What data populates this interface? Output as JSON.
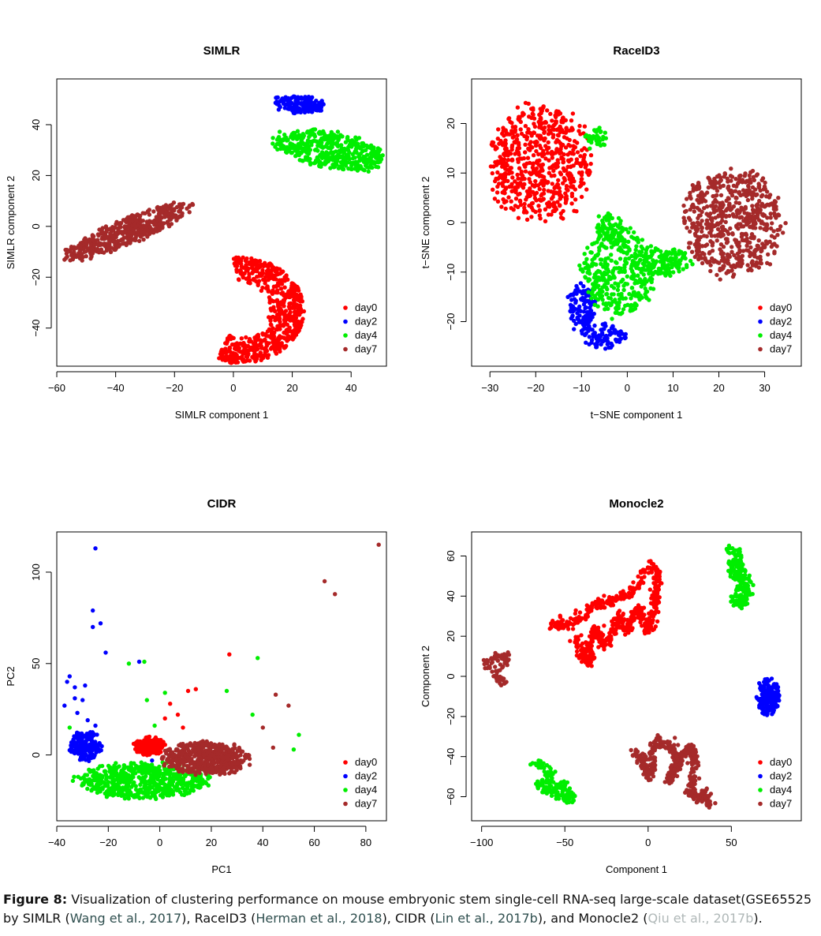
{
  "chart_data": [
    {
      "type": "scatter",
      "title": "SIMLR",
      "xlabel": "SIMLR component 1",
      "ylabel": "SIMLR component 2",
      "xlim": [
        -60,
        52
      ],
      "ylim": [
        -55,
        58
      ],
      "xticks": [
        -60,
        -40,
        -20,
        0,
        20,
        40
      ],
      "yticks": [
        -40,
        -20,
        0,
        20,
        40
      ],
      "legend": "bottom-right",
      "series": [
        {
          "name": "day0",
          "color": "#ff0000",
          "clusters": [
            {
              "kind": "arc",
              "cx": 2,
              "cy": -33,
              "rin": 10,
              "rout": 22,
              "a0": -110,
              "a1": 95,
              "n": 650
            }
          ]
        },
        {
          "name": "day2",
          "color": "#0000ff",
          "clusters": [
            {
              "kind": "ellipse",
              "cx": 22,
              "cy": 48,
              "rx": 9,
              "ry": 3.5,
              "rot": -5,
              "n": 150
            }
          ]
        },
        {
          "name": "day4",
          "color": "#00ee00",
          "clusters": [
            {
              "kind": "ellipse",
              "cx": 33,
              "cy": 30,
              "rx": 20,
              "ry": 7,
              "rot": -12,
              "n": 480
            }
          ]
        },
        {
          "name": "day7",
          "color": "#a52a2a",
          "clusters": [
            {
              "kind": "ellipse",
              "cx": -36,
              "cy": -2,
              "rx": 24,
              "ry": 5,
              "rot": 26,
              "n": 500
            }
          ]
        }
      ]
    },
    {
      "type": "scatter",
      "title": "RaceID3",
      "xlabel": "t−SNE component 1",
      "ylabel": "t−SNE component 2",
      "xlim": [
        -34,
        38
      ],
      "ylim": [
        -29,
        29
      ],
      "xticks": [
        -30,
        -20,
        -10,
        0,
        10,
        20,
        30
      ],
      "yticks": [
        -20,
        -10,
        0,
        10,
        20
      ],
      "legend": "bottom-right",
      "series": [
        {
          "name": "day0",
          "color": "#ff0000",
          "clusters": [
            {
              "kind": "ellipse",
              "cx": -19,
              "cy": 12,
              "rx": 11,
              "ry": 12,
              "rot": 0,
              "n": 620
            }
          ]
        },
        {
          "name": "day2",
          "color": "#0000ff",
          "clusters": [
            {
              "kind": "ellipse",
              "cx": -10,
              "cy": -17,
              "rx": 3,
              "ry": 5,
              "rot": 0,
              "n": 110
            },
            {
              "kind": "ellipse",
              "cx": -5,
              "cy": -23,
              "rx": 5,
              "ry": 2.5,
              "rot": 0,
              "n": 90
            }
          ]
        },
        {
          "name": "day4",
          "color": "#00ee00",
          "clusters": [
            {
              "kind": "ellipse",
              "cx": -2,
              "cy": -10,
              "rx": 8,
              "ry": 9,
              "rot": 0,
              "n": 380
            },
            {
              "kind": "ellipse",
              "cx": 8,
              "cy": -8,
              "rx": 6,
              "ry": 3,
              "rot": 0,
              "n": 140
            },
            {
              "kind": "ellipse",
              "cx": -4,
              "cy": -1,
              "rx": 3,
              "ry": 3,
              "rot": 0,
              "n": 60
            },
            {
              "kind": "ellipse",
              "cx": -7,
              "cy": 17,
              "rx": 2.5,
              "ry": 2.5,
              "rot": 0,
              "n": 35
            }
          ]
        },
        {
          "name": "day7",
          "color": "#a52a2a",
          "clusters": [
            {
              "kind": "ellipse",
              "cx": 23,
              "cy": 0,
              "rx": 11,
              "ry": 11,
              "rot": 0,
              "n": 620
            }
          ]
        }
      ]
    },
    {
      "type": "scatter",
      "title": "CIDR",
      "xlabel": "PC1",
      "ylabel": "PC2",
      "xlim": [
        -40,
        88
      ],
      "ylim": [
        -36,
        122
      ],
      "xticks": [
        -40,
        -20,
        0,
        20,
        40,
        60,
        80
      ],
      "yticks": [
        0,
        50,
        100
      ],
      "legend": "bottom-right",
      "series": [
        {
          "name": "day0",
          "color": "#ff0000",
          "clusters": [
            {
              "kind": "ellipse",
              "cx": -4,
              "cy": 5,
              "rx": 6,
              "ry": 5,
              "rot": 0,
              "n": 170
            },
            {
              "kind": "scatter",
              "pts": [
                [
                  4,
                  28
                ],
                [
                  7,
                  22
                ],
                [
                  11,
                  35
                ],
                [
                  14,
                  36
                ],
                [
                  27,
                  55
                ],
                [
                  9,
                  15
                ],
                [
                  2,
                  20
                ]
              ]
            }
          ]
        },
        {
          "name": "day2",
          "color": "#0000ff",
          "clusters": [
            {
              "kind": "ellipse",
              "cx": -29,
              "cy": 5,
              "rx": 6,
              "ry": 8,
              "rot": 0,
              "n": 170
            },
            {
              "kind": "scatter",
              "pts": [
                [
                  -25,
                  113
                ],
                [
                  -26,
                  79
                ],
                [
                  -26,
                  70
                ],
                [
                  -23,
                  72
                ],
                [
                  -21,
                  56
                ],
                [
                  -35,
                  43
                ],
                [
                  -36,
                  40
                ],
                [
                  -33,
                  37
                ],
                [
                  -29,
                  38
                ],
                [
                  -30,
                  30
                ],
                [
                  -33,
                  31
                ],
                [
                  -37,
                  27
                ],
                [
                  -32,
                  23
                ],
                [
                  -28,
                  19
                ],
                [
                  -25,
                  16
                ],
                [
                  -8,
                  51
                ],
                [
                  -3,
                  -3
                ]
              ]
            }
          ]
        },
        {
          "name": "day4",
          "color": "#00ee00",
          "clusters": [
            {
              "kind": "ellipse",
              "cx": -6,
              "cy": -14,
              "rx": 26,
              "ry": 10,
              "rot": 0,
              "n": 650
            },
            {
              "kind": "scatter",
              "pts": [
                [
                  -12,
                  50
                ],
                [
                  -6,
                  51
                ],
                [
                  38,
                  53
                ],
                [
                  54,
                  11
                ],
                [
                  52,
                  3
                ],
                [
                  26,
                  35
                ],
                [
                  -5,
                  30
                ],
                [
                  2,
                  34
                ],
                [
                  36,
                  22
                ],
                [
                  -2,
                  16
                ],
                [
                  -35,
                  15
                ]
              ]
            }
          ]
        },
        {
          "name": "day7",
          "color": "#a52a2a",
          "clusters": [
            {
              "kind": "ellipse",
              "cx": 18,
              "cy": -2,
              "rx": 17,
              "ry": 9,
              "rot": 0,
              "n": 520
            },
            {
              "kind": "scatter",
              "pts": [
                [
                  85,
                  115
                ],
                [
                  64,
                  95
                ],
                [
                  68,
                  88
                ],
                [
                  45,
                  33
                ],
                [
                  50,
                  27
                ],
                [
                  40,
                  15
                ],
                [
                  44,
                  4
                ]
              ]
            }
          ]
        }
      ]
    },
    {
      "type": "scatter",
      "title": "Monocle2",
      "xlabel": "Component 1",
      "ylabel": "Component 2",
      "xlim": [
        -106,
        92
      ],
      "ylim": [
        -72,
        72
      ],
      "xticks": [
        -100,
        -50,
        0,
        50
      ],
      "yticks": [
        -60,
        -40,
        -20,
        0,
        20,
        40,
        60
      ],
      "legend": "bottom-right",
      "series": [
        {
          "name": "day0",
          "color": "#ff0000",
          "clusters": [
            {
              "kind": "path",
              "width": 2.5,
              "n": 650,
              "pts": [
                [
                  -58,
                  25
                ],
                [
                  -48,
                  27
                ],
                [
                  -38,
                  30
                ],
                [
                  -32,
                  35
                ],
                [
                  -26,
                  38
                ],
                [
                  -20,
                  38
                ],
                [
                  -14,
                  40
                ],
                [
                  -10,
                  42
                ],
                [
                  -5,
                  45
                ],
                [
                  -3,
                  52
                ],
                [
                  2,
                  55
                ],
                [
                  6,
                  52
                ],
                [
                  5,
                  40
                ],
                [
                  3,
                  30
                ],
                [
                  0,
                  22
                ],
                [
                  -3,
                  28
                ],
                [
                  -6,
                  35
                ],
                [
                  -9,
                  28
                ],
                [
                  -13,
                  22
                ],
                [
                  -17,
                  30
                ],
                [
                  -22,
                  20
                ],
                [
                  -26,
                  15
                ],
                [
                  -31,
                  24
                ],
                [
                  -36,
                  16
                ],
                [
                  -35,
                  6
                ],
                [
                  -39,
                  10
                ],
                [
                  -43,
                  19
                ]
              ]
            }
          ]
        },
        {
          "name": "day2",
          "color": "#0000ff",
          "clusters": [
            {
              "kind": "ellipse",
              "cx": 72,
              "cy": -10,
              "rx": 7,
              "ry": 9,
              "rot": 0,
              "n": 170
            }
          ]
        },
        {
          "name": "day4",
          "color": "#00ee00",
          "clusters": [
            {
              "kind": "path",
              "width": 2.5,
              "n": 220,
              "pts": [
                [
                  48,
                  65
                ],
                [
                  52,
                  60
                ],
                [
                  49,
                  55
                ],
                [
                  52,
                  50
                ],
                [
                  56,
                  48
                ],
                [
                  54,
                  42
                ],
                [
                  52,
                  37
                ],
                [
                  57,
                  36
                ],
                [
                  60,
                  42
                ],
                [
                  58,
                  50
                ],
                [
                  55,
                  55
                ],
                [
                  55,
                  62
                ]
              ]
            },
            {
              "kind": "path",
              "width": 2.5,
              "n": 170,
              "pts": [
                [
                  -68,
                  -44
                ],
                [
                  -62,
                  -45
                ],
                [
                  -58,
                  -48
                ],
                [
                  -62,
                  -52
                ],
                [
                  -66,
                  -55
                ],
                [
                  -58,
                  -57
                ],
                [
                  -52,
                  -54
                ],
                [
                  -48,
                  -58
                ],
                [
                  -45,
                  -60
                ],
                [
                  -50,
                  -61
                ],
                [
                  -55,
                  -60
                ]
              ]
            }
          ]
        },
        {
          "name": "day7",
          "color": "#a52a2a",
          "clusters": [
            {
              "kind": "path",
              "width": 2.2,
              "n": 80,
              "pts": [
                [
                  -97,
                  5
                ],
                [
                  -93,
                  10
                ],
                [
                  -88,
                  10
                ],
                [
                  -84,
                  9
                ],
                [
                  -88,
                  5
                ],
                [
                  -92,
                  2
                ],
                [
                  -90,
                  -1
                ],
                [
                  -86,
                  -3
                ]
              ]
            },
            {
              "kind": "path",
              "width": 2.5,
              "n": 480,
              "pts": [
                [
                  -9,
                  -38
                ],
                [
                  -4,
                  -40
                ],
                [
                  -2,
                  -45
                ],
                [
                  0,
                  -50
                ],
                [
                  3,
                  -45
                ],
                [
                  2,
                  -38
                ],
                [
                  5,
                  -32
                ],
                [
                  10,
                  -33
                ],
                [
                  14,
                  -35
                ],
                [
                  17,
                  -40
                ],
                [
                  15,
                  -47
                ],
                [
                  12,
                  -52
                ],
                [
                  16,
                  -47
                ],
                [
                  20,
                  -40
                ],
                [
                  25,
                  -35
                ],
                [
                  28,
                  -40
                ],
                [
                  27,
                  -48
                ],
                [
                  25,
                  -57
                ],
                [
                  29,
                  -60
                ],
                [
                  35,
                  -62
                ],
                [
                  33,
                  -58
                ],
                [
                  37,
                  -65
                ]
              ]
            }
          ]
        }
      ]
    }
  ],
  "caption": {
    "label": "Figure 8:",
    "line1": "Visualization of clustering performance on mouse embryonic stem single-cell RNA-seq large-scale dataset(GSE65525",
    "line2_a": "by SIMLR (",
    "cite1": "Wang et al., 2017",
    "line2_b": "), RaceID3 (",
    "cite2": "Herman et al., 2018",
    "line2_c": "), CIDR (",
    "cite3": "Lin et al., 2017b",
    "line2_d": "), and Monocle2 (",
    "cite4": "Qiu et al., 2017b",
    "line2_e": ")."
  }
}
